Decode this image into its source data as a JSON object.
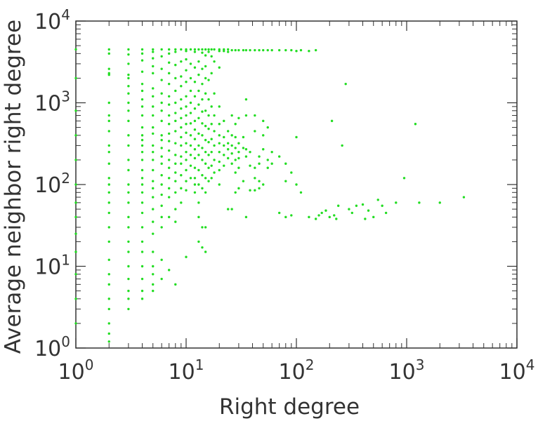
{
  "chart_data": {
    "type": "scatter",
    "title": "",
    "xlabel": "Right degree",
    "ylabel": "Average neighbor right degree",
    "xscale": "log",
    "yscale": "log",
    "xlim": [
      1,
      10000
    ],
    "ylim": [
      1,
      10000
    ],
    "x_tick_labels": [
      {
        "base": "10",
        "exp": "0"
      },
      {
        "base": "10",
        "exp": "1"
      },
      {
        "base": "10",
        "exp": "2"
      },
      {
        "base": "10",
        "exp": "3"
      },
      {
        "base": "10",
        "exp": "4"
      }
    ],
    "y_tick_labels": [
      {
        "base": "10",
        "exp": "0"
      },
      {
        "base": "10",
        "exp": "1"
      },
      {
        "base": "10",
        "exp": "2"
      },
      {
        "base": "10",
        "exp": "3"
      },
      {
        "base": "10",
        "exp": "4"
      }
    ],
    "grid": false,
    "legend": "none",
    "marker_color": "#22dd22",
    "axis_color": "#333333",
    "points": [
      [
        2,
        4500
      ],
      [
        2,
        4000
      ],
      [
        2,
        2600
      ],
      [
        2,
        2300
      ],
      [
        2,
        2200
      ],
      [
        2,
        1000
      ],
      [
        2,
        700
      ],
      [
        2,
        600
      ],
      [
        2,
        450
      ],
      [
        2,
        300
      ],
      [
        2,
        250
      ],
      [
        2,
        180
      ],
      [
        2,
        120
      ],
      [
        2,
        100
      ],
      [
        2,
        80
      ],
      [
        2,
        60
      ],
      [
        2,
        45
      ],
      [
        2,
        30
      ],
      [
        2,
        20
      ],
      [
        2,
        12
      ],
      [
        2,
        8
      ],
      [
        2,
        6
      ],
      [
        2,
        4
      ],
      [
        2,
        3
      ],
      [
        2,
        2
      ],
      [
        2,
        1.5
      ],
      [
        2,
        1.2
      ],
      [
        3,
        4500
      ],
      [
        3,
        3900
      ],
      [
        3,
        3000
      ],
      [
        3,
        2200
      ],
      [
        3,
        2000
      ],
      [
        3,
        1600
      ],
      [
        3,
        1300
      ],
      [
        3,
        1000
      ],
      [
        3,
        800
      ],
      [
        3,
        600
      ],
      [
        3,
        400
      ],
      [
        3,
        300
      ],
      [
        3,
        200
      ],
      [
        3,
        150
      ],
      [
        3,
        100
      ],
      [
        3,
        80
      ],
      [
        3,
        60
      ],
      [
        3,
        40
      ],
      [
        3,
        30
      ],
      [
        3,
        20
      ],
      [
        3,
        15
      ],
      [
        3,
        10
      ],
      [
        3,
        7
      ],
      [
        3,
        5
      ],
      [
        3,
        4
      ],
      [
        3,
        3
      ],
      [
        4,
        4500
      ],
      [
        4,
        4000
      ],
      [
        4,
        3300
      ],
      [
        4,
        2400
      ],
      [
        4,
        1700
      ],
      [
        4,
        1400
      ],
      [
        4,
        1100
      ],
      [
        4,
        900
      ],
      [
        4,
        700
      ],
      [
        4,
        500
      ],
      [
        4,
        400
      ],
      [
        4,
        350
      ],
      [
        4,
        300
      ],
      [
        4,
        250
      ],
      [
        4,
        200
      ],
      [
        4,
        150
      ],
      [
        4,
        120
      ],
      [
        4,
        100
      ],
      [
        4,
        80
      ],
      [
        4,
        60
      ],
      [
        4,
        45
      ],
      [
        4,
        30
      ],
      [
        4,
        20
      ],
      [
        4,
        15
      ],
      [
        4,
        10
      ],
      [
        4,
        7
      ],
      [
        4,
        5
      ],
      [
        4,
        4
      ],
      [
        5,
        4500
      ],
      [
        5,
        4200
      ],
      [
        5,
        3500
      ],
      [
        5,
        2800
      ],
      [
        5,
        2300
      ],
      [
        5,
        1500
      ],
      [
        5,
        1200
      ],
      [
        5,
        900
      ],
      [
        5,
        700
      ],
      [
        5,
        500
      ],
      [
        5,
        420
      ],
      [
        5,
        300
      ],
      [
        5,
        250
      ],
      [
        5,
        200
      ],
      [
        5,
        150
      ],
      [
        5,
        110
      ],
      [
        5,
        90
      ],
      [
        5,
        70
      ],
      [
        5,
        50
      ],
      [
        5,
        35
      ],
      [
        5,
        25
      ],
      [
        5,
        15
      ],
      [
        5,
        10
      ],
      [
        5,
        8
      ],
      [
        5,
        6
      ],
      [
        5,
        5
      ],
      [
        6,
        4500
      ],
      [
        6,
        3700
      ],
      [
        6,
        2600
      ],
      [
        6,
        1900
      ],
      [
        6,
        1300
      ],
      [
        6,
        1000
      ],
      [
        6,
        800
      ],
      [
        6,
        600
      ],
      [
        6,
        400
      ],
      [
        6,
        350
      ],
      [
        6,
        280
      ],
      [
        6,
        220
      ],
      [
        6,
        180
      ],
      [
        6,
        130
      ],
      [
        6,
        100
      ],
      [
        6,
        75
      ],
      [
        6,
        55
      ],
      [
        6,
        40
      ],
      [
        6,
        30
      ],
      [
        6,
        12
      ],
      [
        6,
        7
      ],
      [
        7,
        4500
      ],
      [
        7,
        4000
      ],
      [
        7,
        3100
      ],
      [
        7,
        2300
      ],
      [
        7,
        1700
      ],
      [
        7,
        1200
      ],
      [
        7,
        950
      ],
      [
        7,
        700
      ],
      [
        7,
        550
      ],
      [
        7,
        420
      ],
      [
        7,
        340
      ],
      [
        7,
        260
      ],
      [
        7,
        200
      ],
      [
        7,
        160
      ],
      [
        7,
        120
      ],
      [
        7,
        90
      ],
      [
        7,
        70
      ],
      [
        7,
        40
      ],
      [
        7,
        9
      ],
      [
        8,
        4500
      ],
      [
        8,
        4200
      ],
      [
        8,
        2900
      ],
      [
        8,
        2000
      ],
      [
        8,
        1400
      ],
      [
        8,
        1000
      ],
      [
        8,
        750
      ],
      [
        8,
        600
      ],
      [
        8,
        450
      ],
      [
        8,
        320
      ],
      [
        8,
        230
      ],
      [
        8,
        180
      ],
      [
        8,
        140
      ],
      [
        8,
        110
      ],
      [
        8,
        80
      ],
      [
        8,
        50
      ],
      [
        8,
        35
      ],
      [
        8,
        6
      ],
      [
        9,
        4500
      ],
      [
        9,
        3200
      ],
      [
        9,
        2100
      ],
      [
        9,
        1600
      ],
      [
        9,
        1100
      ],
      [
        9,
        850
      ],
      [
        9,
        650
      ],
      [
        9,
        500
      ],
      [
        9,
        380
      ],
      [
        9,
        300
      ],
      [
        9,
        220
      ],
      [
        9,
        180
      ],
      [
        9,
        130
      ],
      [
        9,
        90
      ],
      [
        9,
        60
      ],
      [
        10,
        4500
      ],
      [
        10,
        4300
      ],
      [
        10,
        3400
      ],
      [
        10,
        2500
      ],
      [
        10,
        1800
      ],
      [
        10,
        1200
      ],
      [
        10,
        900
      ],
      [
        10,
        700
      ],
      [
        10,
        550
      ],
      [
        10,
        430
      ],
      [
        10,
        320
      ],
      [
        10,
        250
      ],
      [
        10,
        200
      ],
      [
        10,
        150
      ],
      [
        10,
        110
      ],
      [
        10,
        85
      ],
      [
        10,
        13
      ],
      [
        11,
        4500
      ],
      [
        11,
        3000
      ],
      [
        11,
        2000
      ],
      [
        11,
        1400
      ],
      [
        11,
        1000
      ],
      [
        11,
        750
      ],
      [
        11,
        560
      ],
      [
        11,
        400
      ],
      [
        11,
        300
      ],
      [
        11,
        230
      ],
      [
        11,
        170
      ],
      [
        11,
        120
      ],
      [
        12,
        4500
      ],
      [
        12,
        4200
      ],
      [
        12,
        2700
      ],
      [
        12,
        1800
      ],
      [
        12,
        1200
      ],
      [
        12,
        850
      ],
      [
        12,
        600
      ],
      [
        12,
        470
      ],
      [
        12,
        360
      ],
      [
        12,
        270
      ],
      [
        12,
        210
      ],
      [
        12,
        160
      ],
      [
        12,
        120
      ],
      [
        12,
        100
      ],
      [
        12,
        80
      ],
      [
        13,
        4500
      ],
      [
        13,
        3200
      ],
      [
        13,
        2200
      ],
      [
        13,
        1400
      ],
      [
        13,
        950
      ],
      [
        13,
        650
      ],
      [
        13,
        420
      ],
      [
        13,
        300
      ],
      [
        13,
        230
      ],
      [
        13,
        150
      ],
      [
        13,
        100
      ],
      [
        13,
        60
      ],
      [
        13,
        40
      ],
      [
        13,
        20
      ],
      [
        14,
        4500
      ],
      [
        14,
        4100
      ],
      [
        14,
        2600
      ],
      [
        14,
        1700
      ],
      [
        14,
        1100
      ],
      [
        14,
        780
      ],
      [
        14,
        560
      ],
      [
        14,
        400
      ],
      [
        14,
        280
      ],
      [
        14,
        200
      ],
      [
        14,
        130
      ],
      [
        14,
        90
      ],
      [
        14,
        30
      ],
      [
        14,
        17
      ],
      [
        15,
        4500
      ],
      [
        15,
        3800
      ],
      [
        15,
        2800
      ],
      [
        15,
        2000
      ],
      [
        15,
        1300
      ],
      [
        15,
        800
      ],
      [
        15,
        520
      ],
      [
        15,
        350
      ],
      [
        15,
        250
      ],
      [
        15,
        180
      ],
      [
        15,
        120
      ],
      [
        15,
        80
      ],
      [
        15,
        30
      ],
      [
        15,
        15
      ],
      [
        16,
        4500
      ],
      [
        16,
        4200
      ],
      [
        16,
        1900
      ],
      [
        16,
        1100
      ],
      [
        16,
        700
      ],
      [
        16,
        480
      ],
      [
        16,
        330
      ],
      [
        16,
        230
      ],
      [
        16,
        160
      ],
      [
        16,
        110
      ],
      [
        17,
        4500
      ],
      [
        17,
        3700
      ],
      [
        17,
        2300
      ],
      [
        17,
        900
      ],
      [
        17,
        550
      ],
      [
        17,
        360
      ],
      [
        17,
        250
      ],
      [
        17,
        170
      ],
      [
        17,
        120
      ],
      [
        18,
        4500
      ],
      [
        18,
        3200
      ],
      [
        18,
        1300
      ],
      [
        18,
        700
      ],
      [
        18,
        450
      ],
      [
        18,
        300
      ],
      [
        18,
        200
      ],
      [
        18,
        140
      ],
      [
        20,
        4500
      ],
      [
        20,
        4300
      ],
      [
        20,
        2700
      ],
      [
        20,
        900
      ],
      [
        20,
        550
      ],
      [
        20,
        400
      ],
      [
        20,
        320
      ],
      [
        20,
        250
      ],
      [
        20,
        190
      ],
      [
        20,
        150
      ],
      [
        20,
        100
      ],
      [
        22,
        4500
      ],
      [
        22,
        4300
      ],
      [
        22,
        600
      ],
      [
        22,
        380
      ],
      [
        22,
        300
      ],
      [
        22,
        230
      ],
      [
        22,
        170
      ],
      [
        24,
        4500
      ],
      [
        24,
        4200
      ],
      [
        24,
        450
      ],
      [
        24,
        320
      ],
      [
        24,
        270
      ],
      [
        24,
        210
      ],
      [
        24,
        50
      ],
      [
        26,
        4400
      ],
      [
        26,
        700
      ],
      [
        26,
        400
      ],
      [
        26,
        300
      ],
      [
        26,
        240
      ],
      [
        26,
        180
      ],
      [
        26,
        50
      ],
      [
        28,
        4400
      ],
      [
        28,
        550
      ],
      [
        28,
        380
      ],
      [
        28,
        280
      ],
      [
        28,
        200
      ],
      [
        28,
        140
      ],
      [
        28,
        80
      ],
      [
        30,
        4400
      ],
      [
        30,
        650
      ],
      [
        30,
        320
      ],
      [
        30,
        250
      ],
      [
        30,
        210
      ],
      [
        30,
        160
      ],
      [
        30,
        90
      ],
      [
        33,
        4400
      ],
      [
        33,
        380
      ],
      [
        33,
        280
      ],
      [
        33,
        110
      ],
      [
        35,
        4400
      ],
      [
        35,
        1100
      ],
      [
        35,
        700
      ],
      [
        35,
        270
      ],
      [
        35,
        220
      ],
      [
        35,
        40
      ],
      [
        38,
        4400
      ],
      [
        38,
        250
      ],
      [
        38,
        170
      ],
      [
        38,
        85
      ],
      [
        42,
        4400
      ],
      [
        42,
        700
      ],
      [
        42,
        450
      ],
      [
        42,
        160
      ],
      [
        42,
        120
      ],
      [
        42,
        85
      ],
      [
        46,
        4400
      ],
      [
        46,
        220
      ],
      [
        46,
        180
      ],
      [
        46,
        110
      ],
      [
        46,
        90
      ],
      [
        50,
        4400
      ],
      [
        50,
        600
      ],
      [
        50,
        400
      ],
      [
        50,
        270
      ],
      [
        50,
        100
      ],
      [
        55,
        4400
      ],
      [
        55,
        500
      ],
      [
        55,
        200
      ],
      [
        55,
        160
      ],
      [
        60,
        4400
      ],
      [
        60,
        250
      ],
      [
        60,
        180
      ],
      [
        70,
        4400
      ],
      [
        70,
        220
      ],
      [
        70,
        45
      ],
      [
        80,
        4400
      ],
      [
        80,
        180
      ],
      [
        80,
        110
      ],
      [
        80,
        40
      ],
      [
        90,
        4400
      ],
      [
        90,
        140
      ],
      [
        90,
        42
      ],
      [
        100,
        4300
      ],
      [
        100,
        380
      ],
      [
        100,
        100
      ],
      [
        110,
        4400
      ],
      [
        110,
        80
      ],
      [
        130,
        4300
      ],
      [
        130,
        40
      ],
      [
        150,
        4400
      ],
      [
        150,
        38
      ],
      [
        160,
        42
      ],
      [
        170,
        45
      ],
      [
        185,
        48
      ],
      [
        200,
        40
      ],
      [
        210,
        600
      ],
      [
        220,
        42
      ],
      [
        230,
        38
      ],
      [
        240,
        55
      ],
      [
        260,
        300
      ],
      [
        280,
        1700
      ],
      [
        300,
        50
      ],
      [
        320,
        45
      ],
      [
        350,
        55
      ],
      [
        400,
        57
      ],
      [
        420,
        38
      ],
      [
        450,
        48
      ],
      [
        500,
        40
      ],
      [
        550,
        65
      ],
      [
        600,
        55
      ],
      [
        650,
        45
      ],
      [
        800,
        60
      ],
      [
        950,
        120
      ],
      [
        1200,
        550
      ],
      [
        1300,
        60
      ],
      [
        2000,
        60
      ],
      [
        3300,
        70
      ],
      [
        1,
        4500
      ],
      [
        1,
        2000
      ],
      [
        1,
        800
      ],
      [
        1,
        400
      ],
      [
        1,
        200
      ],
      [
        1,
        100
      ],
      [
        1,
        60
      ],
      [
        1,
        40
      ],
      [
        1,
        25
      ],
      [
        1,
        15
      ],
      [
        1,
        8
      ],
      [
        1,
        4
      ],
      [
        1,
        2
      ]
    ]
  }
}
